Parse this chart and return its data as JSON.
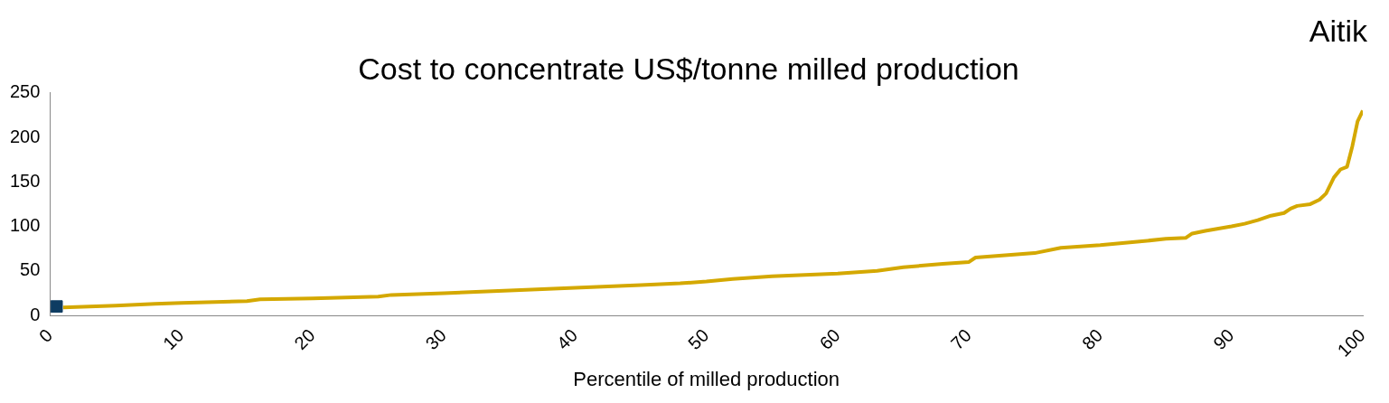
{
  "chart_data": {
    "type": "line",
    "title": "Cost to concentrate US$/tonne milled production",
    "xlabel": "Percentile of milled production",
    "annotations": [
      "Aitik"
    ],
    "xlim": [
      0,
      100
    ],
    "xticks": [
      0,
      10,
      20,
      30,
      40,
      50,
      60,
      70,
      80,
      90,
      100
    ],
    "ylim": [
      0,
      250
    ],
    "yticks": [
      0,
      50,
      100,
      150,
      200,
      250
    ],
    "grid": false,
    "legend": false,
    "series": [
      {
        "color": "#d4a800",
        "x": [
          1,
          5,
          8,
          10,
          15,
          16,
          20,
          25,
          26,
          30,
          35,
          40,
          45,
          48,
          50,
          52,
          55,
          60,
          63,
          65,
          68,
          70,
          70.5,
          75,
          77,
          80,
          83,
          85,
          86.5,
          87,
          88,
          90,
          91,
          92,
          93,
          94,
          94.5,
          95,
          96,
          96.7,
          97.2,
          97.8,
          98.3,
          98.8,
          99.2,
          99.6,
          100
        ],
        "values": [
          9,
          11,
          13,
          14,
          16,
          18,
          19,
          21,
          23,
          25,
          28,
          31,
          34,
          36,
          38,
          41,
          44,
          47,
          50,
          54,
          58,
          60,
          65,
          70,
          76,
          79,
          83,
          86,
          87,
          92,
          95,
          100,
          103,
          107,
          112,
          115,
          120,
          123,
          125,
          130,
          137,
          155,
          164,
          167,
          190,
          218,
          230
        ]
      },
      {
        "type": "scatter",
        "color": "#0e3c62",
        "marker": "square",
        "x": [
          0.5
        ],
        "values": [
          10
        ]
      }
    ]
  }
}
